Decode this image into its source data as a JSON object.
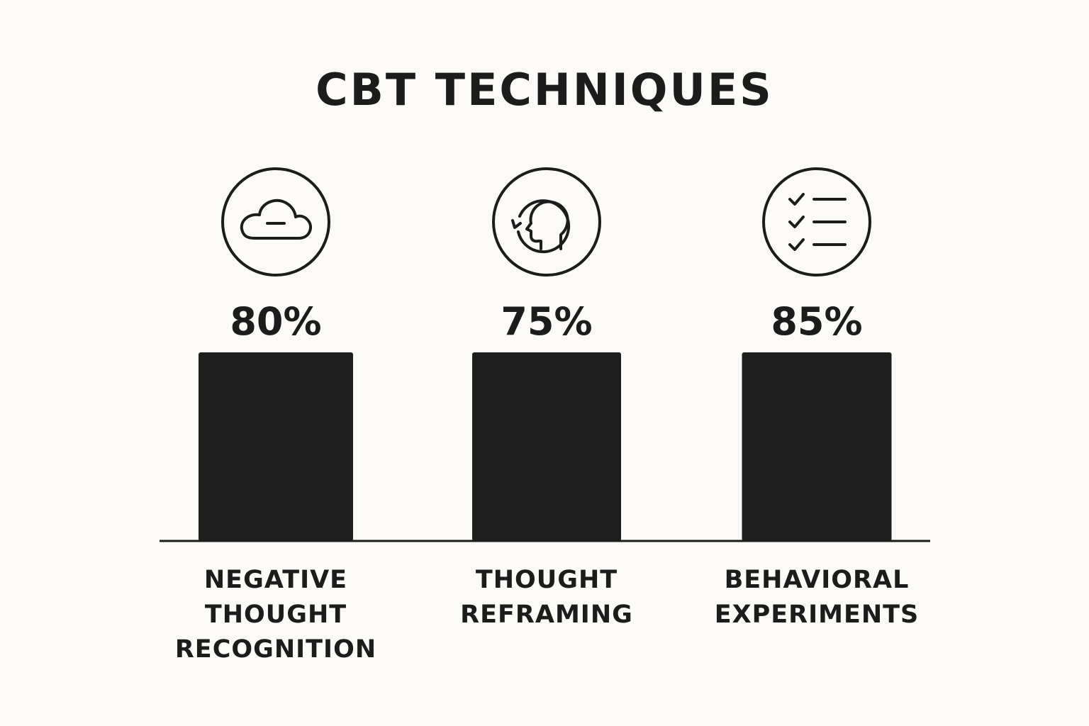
{
  "chart_data": {
    "type": "bar",
    "title": "CBT TECHNIQUES",
    "categories": [
      [
        "NEGATIVE",
        "THOUGHT",
        "RECOGNITION"
      ],
      [
        "THOUGHT",
        "REFRAMING"
      ],
      [
        "BEHAVIORAL",
        "EXPERIMENTS"
      ]
    ],
    "values": [
      80,
      75,
      85
    ],
    "value_labels": [
      "80%",
      "75%",
      "85%"
    ],
    "icons": [
      "cloud-minus-icon",
      "head-refresh-icon",
      "checklist-icon"
    ],
    "xlabel": "",
    "ylabel": "",
    "grid": false,
    "legend": "none"
  }
}
